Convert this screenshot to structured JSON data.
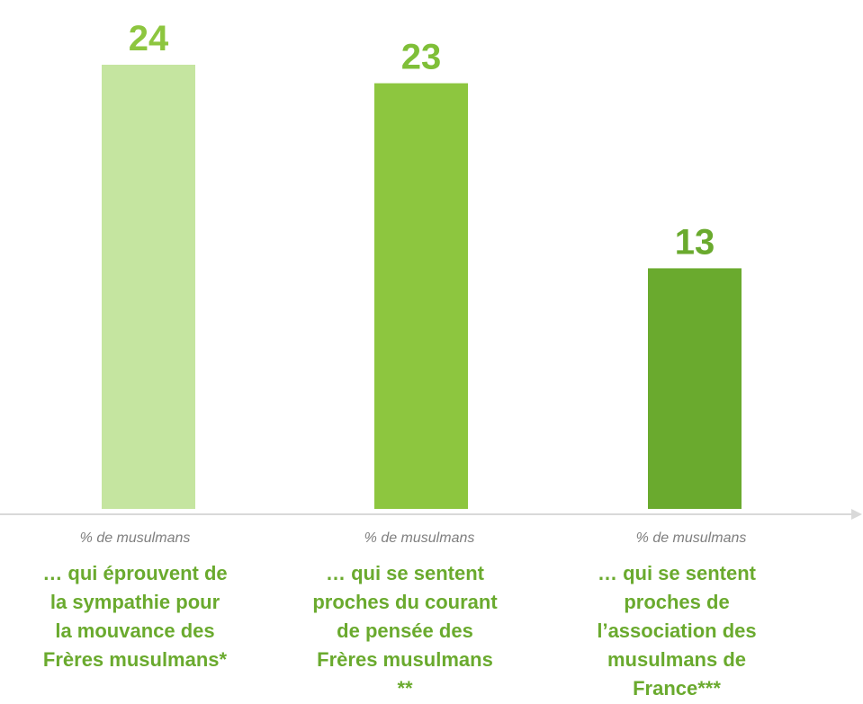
{
  "chart_data": {
    "type": "bar",
    "categories": [
      "… qui éprouvent de\nla sympathie pour\nla mouvance des\nFrères musulmans*",
      "… qui se sentent\nproches du courant\nde pensée des\nFrères musulmans\n**",
      "… qui se sentent\nproches de\nl’association des\nmusulmans de\nFrance***"
    ],
    "category_note": "% de musulmans",
    "values": [
      24,
      23,
      13
    ],
    "colors": [
      "#c5e5a0",
      "#8dc63f",
      "#6aaa2e"
    ],
    "label_colors": [
      "#8dc63f",
      "#7fbf38",
      "#6aaa2e"
    ]
  }
}
